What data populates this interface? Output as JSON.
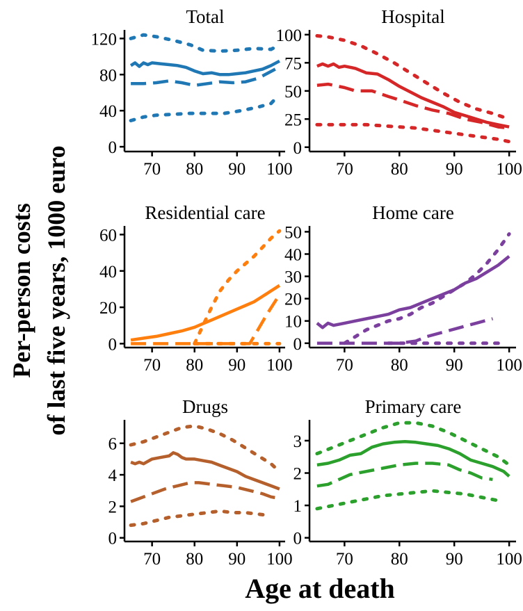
{
  "figure": {
    "ylabel_line1": "Per-person costs",
    "ylabel_line2": "of last five years, 1000 euro",
    "xlabel": "Age at death"
  },
  "chart_data": [
    {
      "type": "line",
      "title": "Total",
      "color": "#1f77b4",
      "x_ticks": [
        70,
        80,
        90,
        100
      ],
      "y_ticks": [
        0,
        40,
        80,
        120
      ],
      "xlim": [
        64,
        101
      ],
      "ylim": [
        -3,
        128
      ],
      "series": [
        {
          "style": "solid",
          "x": [
            65,
            66,
            67,
            68,
            69,
            70,
            72,
            74,
            76,
            78,
            80,
            82,
            84,
            86,
            88,
            90,
            92,
            94,
            96,
            98,
            100
          ],
          "y": [
            90,
            93,
            89,
            93,
            91,
            93,
            92,
            91,
            90,
            88,
            84,
            81,
            82,
            80,
            80,
            81,
            82,
            84,
            86,
            90,
            95
          ]
        },
        {
          "style": "dashed",
          "x": [
            65,
            68,
            71,
            74,
            77,
            80,
            83,
            86,
            89,
            92,
            95,
            97,
            99
          ],
          "y": [
            70,
            70,
            71,
            73,
            71,
            68,
            70,
            72,
            71,
            72,
            76,
            81,
            86
          ]
        },
        {
          "style": "dotted",
          "x": [
            65,
            68,
            71,
            75,
            79,
            82,
            86,
            90,
            94,
            98,
            100
          ],
          "y": [
            120,
            124,
            122,
            118,
            113,
            107,
            106,
            107,
            109,
            108,
            113
          ]
        },
        {
          "style": "dotted",
          "x": [
            65,
            68,
            71,
            75,
            79,
            83,
            87,
            91,
            95,
            98,
            99
          ],
          "y": [
            29,
            33,
            35,
            36,
            37,
            37,
            37,
            40,
            44,
            48,
            53
          ]
        }
      ]
    },
    {
      "type": "line",
      "title": "Hospital",
      "color": "#d62728",
      "x_ticks": [
        70,
        80,
        90,
        100
      ],
      "y_ticks": [
        0,
        25,
        50,
        75,
        100
      ],
      "xlim": [
        64,
        101
      ],
      "ylim": [
        -2,
        103
      ],
      "series": [
        {
          "style": "solid",
          "x": [
            65,
            66,
            67,
            68,
            69,
            70,
            72,
            74,
            76,
            78,
            80,
            82,
            84,
            86,
            88,
            90,
            92,
            94,
            96,
            98,
            100
          ],
          "y": [
            72,
            74,
            72,
            74,
            71,
            72,
            70,
            66,
            65,
            60,
            54,
            49,
            44,
            40,
            36,
            31,
            28,
            25,
            22,
            20,
            18
          ]
        },
        {
          "style": "dashed",
          "x": [
            65,
            67,
            70,
            72,
            75,
            78,
            80,
            83,
            86,
            89,
            92,
            95,
            98,
            100
          ],
          "y": [
            55,
            56,
            53,
            50,
            50,
            45,
            42,
            37,
            33,
            30,
            25,
            22,
            18,
            17
          ]
        },
        {
          "style": "dotted",
          "x": [
            65,
            67,
            70,
            73,
            76,
            79,
            82,
            85,
            88,
            91,
            94,
            97,
            100
          ],
          "y": [
            99,
            98,
            95,
            90,
            83,
            75,
            66,
            57,
            48,
            40,
            34,
            30,
            25
          ]
        },
        {
          "style": "dotted",
          "x": [
            65,
            68,
            71,
            74,
            77,
            80,
            83,
            86,
            89,
            92,
            95,
            98,
            100
          ],
          "y": [
            20,
            20,
            20,
            20,
            19,
            18,
            17,
            15,
            13,
            11,
            9,
            7,
            5
          ]
        }
      ]
    },
    {
      "type": "line",
      "title": "Residential care",
      "color": "#ff7f0e",
      "x_ticks": [
        70,
        80,
        90,
        100
      ],
      "y_ticks": [
        0,
        20,
        40,
        60
      ],
      "xlim": [
        64,
        101
      ],
      "ylim": [
        -1,
        64
      ],
      "series": [
        {
          "style": "solid",
          "x": [
            65,
            68,
            71,
            74,
            77,
            80,
            82,
            84,
            86,
            88,
            90,
            92,
            94,
            96,
            98,
            100
          ],
          "y": [
            2,
            3,
            4,
            5.5,
            7,
            9,
            11,
            13,
            15,
            17,
            19,
            21,
            23,
            26,
            29,
            32
          ]
        },
        {
          "style": "dashed",
          "x": [
            65,
            70,
            75,
            80,
            85,
            90,
            93,
            95,
            97,
            100
          ],
          "y": [
            0,
            0,
            0,
            0,
            0,
            0,
            0,
            8,
            16,
            27
          ]
        },
        {
          "style": "dotted",
          "x": [
            80,
            82,
            84,
            86,
            88,
            90,
            92,
            94,
            96,
            98,
            100
          ],
          "y": [
            0,
            10,
            20,
            29,
            35,
            40,
            44,
            48,
            53,
            58,
            62
          ]
        },
        {
          "style": "dotted",
          "x": [
            80,
            84,
            88,
            92,
            96,
            100
          ],
          "y": [
            0,
            0,
            0,
            0,
            0,
            0
          ]
        }
      ]
    },
    {
      "type": "line",
      "title": "Home care",
      "color": "#7b3f9e",
      "x_ticks": [
        70,
        80,
        90,
        100
      ],
      "y_ticks": [
        0,
        10,
        20,
        30,
        40,
        50
      ],
      "xlim": [
        64,
        101
      ],
      "ylim": [
        -1,
        52
      ],
      "series": [
        {
          "style": "solid",
          "x": [
            65,
            66,
            67,
            68,
            70,
            72,
            74,
            76,
            78,
            80,
            82,
            84,
            86,
            88,
            90,
            92,
            94,
            96,
            98,
            100
          ],
          "y": [
            9,
            7,
            9,
            8,
            9,
            10,
            11,
            12,
            13,
            15,
            16,
            18,
            20,
            22,
            24,
            27,
            29,
            32,
            35,
            39
          ]
        },
        {
          "style": "dashed",
          "x": [
            65,
            70,
            75,
            80,
            83,
            85,
            88,
            91,
            94,
            97
          ],
          "y": [
            0,
            0,
            0,
            0,
            1,
            3,
            5,
            7,
            9,
            11
          ]
        },
        {
          "style": "dotted",
          "x": [
            70,
            72,
            74,
            76,
            78,
            80,
            82,
            84,
            86,
            88,
            90,
            92,
            94,
            96,
            98,
            100
          ],
          "y": [
            0,
            3,
            6,
            8,
            10,
            11,
            13,
            16,
            18,
            21,
            24,
            27,
            31,
            36,
            42,
            49
          ]
        },
        {
          "style": "dotted",
          "x": [
            78,
            82,
            86,
            90,
            94,
            98
          ],
          "y": [
            0,
            0,
            0,
            0,
            0,
            0
          ]
        }
      ]
    },
    {
      "type": "line",
      "title": "Drugs",
      "color": "#b5602c",
      "x_ticks": [
        70,
        80,
        90,
        100
      ],
      "y_ticks": [
        0,
        2,
        4,
        6
      ],
      "xlim": [
        64,
        101
      ],
      "ylim": [
        -0.1,
        7.4
      ],
      "series": [
        {
          "style": "solid",
          "x": [
            65,
            66,
            67,
            68,
            70,
            72,
            74,
            75,
            76,
            77,
            78,
            80,
            82,
            84,
            86,
            88,
            90,
            92,
            94,
            96,
            98,
            100
          ],
          "y": [
            4.8,
            4.7,
            4.8,
            4.7,
            5.0,
            5.1,
            5.2,
            5.4,
            5.3,
            5.1,
            5.0,
            5.0,
            4.9,
            4.8,
            4.6,
            4.4,
            4.2,
            3.9,
            3.7,
            3.5,
            3.3,
            3.1
          ]
        },
        {
          "style": "dashed",
          "x": [
            65,
            67,
            70,
            73,
            76,
            79,
            81,
            84,
            87,
            90,
            93,
            96,
            98,
            100
          ],
          "y": [
            2.3,
            2.5,
            2.8,
            3.1,
            3.3,
            3.5,
            3.5,
            3.4,
            3.3,
            3.2,
            3.0,
            2.8,
            2.6,
            2.5
          ]
        },
        {
          "style": "dotted",
          "x": [
            65,
            68,
            71,
            74,
            77,
            80,
            83,
            86,
            89,
            92,
            95,
            98,
            100
          ],
          "y": [
            5.9,
            6.1,
            6.4,
            6.7,
            7.0,
            7.1,
            6.9,
            6.6,
            6.2,
            5.7,
            5.2,
            4.7,
            4.2
          ]
        },
        {
          "style": "dotted",
          "x": [
            65,
            68,
            71,
            74,
            77,
            80,
            83,
            86,
            89,
            92,
            95,
            98
          ],
          "y": [
            0.8,
            0.9,
            1.1,
            1.3,
            1.4,
            1.5,
            1.6,
            1.7,
            1.6,
            1.6,
            1.5,
            1.4
          ]
        }
      ]
    },
    {
      "type": "line",
      "title": "Primary care",
      "color": "#2ca02c",
      "x_ticks": [
        70,
        80,
        90,
        100
      ],
      "y_ticks": [
        0,
        1,
        2,
        3
      ],
      "xlim": [
        64,
        101
      ],
      "ylim": [
        -0.05,
        3.6
      ],
      "series": [
        {
          "style": "solid",
          "x": [
            65,
            67,
            69,
            71,
            73,
            75,
            77,
            79,
            81,
            83,
            85,
            87,
            89,
            91,
            93,
            95,
            97,
            99,
            100
          ],
          "y": [
            2.25,
            2.3,
            2.4,
            2.55,
            2.6,
            2.8,
            2.9,
            2.95,
            2.97,
            2.95,
            2.9,
            2.85,
            2.75,
            2.6,
            2.4,
            2.3,
            2.2,
            2.05,
            1.9
          ]
        },
        {
          "style": "dashed",
          "x": [
            65,
            67,
            69,
            71,
            74,
            77,
            80,
            83,
            86,
            89,
            91,
            93,
            95,
            97
          ],
          "y": [
            1.6,
            1.65,
            1.8,
            1.95,
            2.05,
            2.15,
            2.25,
            2.3,
            2.3,
            2.25,
            2.1,
            2.0,
            1.85,
            1.8
          ]
        },
        {
          "style": "dotted",
          "x": [
            65,
            68,
            71,
            74,
            77,
            80,
            83,
            86,
            89,
            92,
            95,
            98,
            100
          ],
          "y": [
            2.6,
            2.8,
            3.0,
            3.2,
            3.4,
            3.55,
            3.55,
            3.45,
            3.25,
            3.0,
            2.75,
            2.5,
            2.25
          ]
        },
        {
          "style": "dotted",
          "x": [
            65,
            68,
            71,
            74,
            77,
            80,
            83,
            86,
            89,
            92,
            95,
            98
          ],
          "y": [
            0.9,
            1.0,
            1.1,
            1.2,
            1.3,
            1.35,
            1.4,
            1.45,
            1.4,
            1.35,
            1.25,
            1.15
          ]
        }
      ]
    }
  ]
}
